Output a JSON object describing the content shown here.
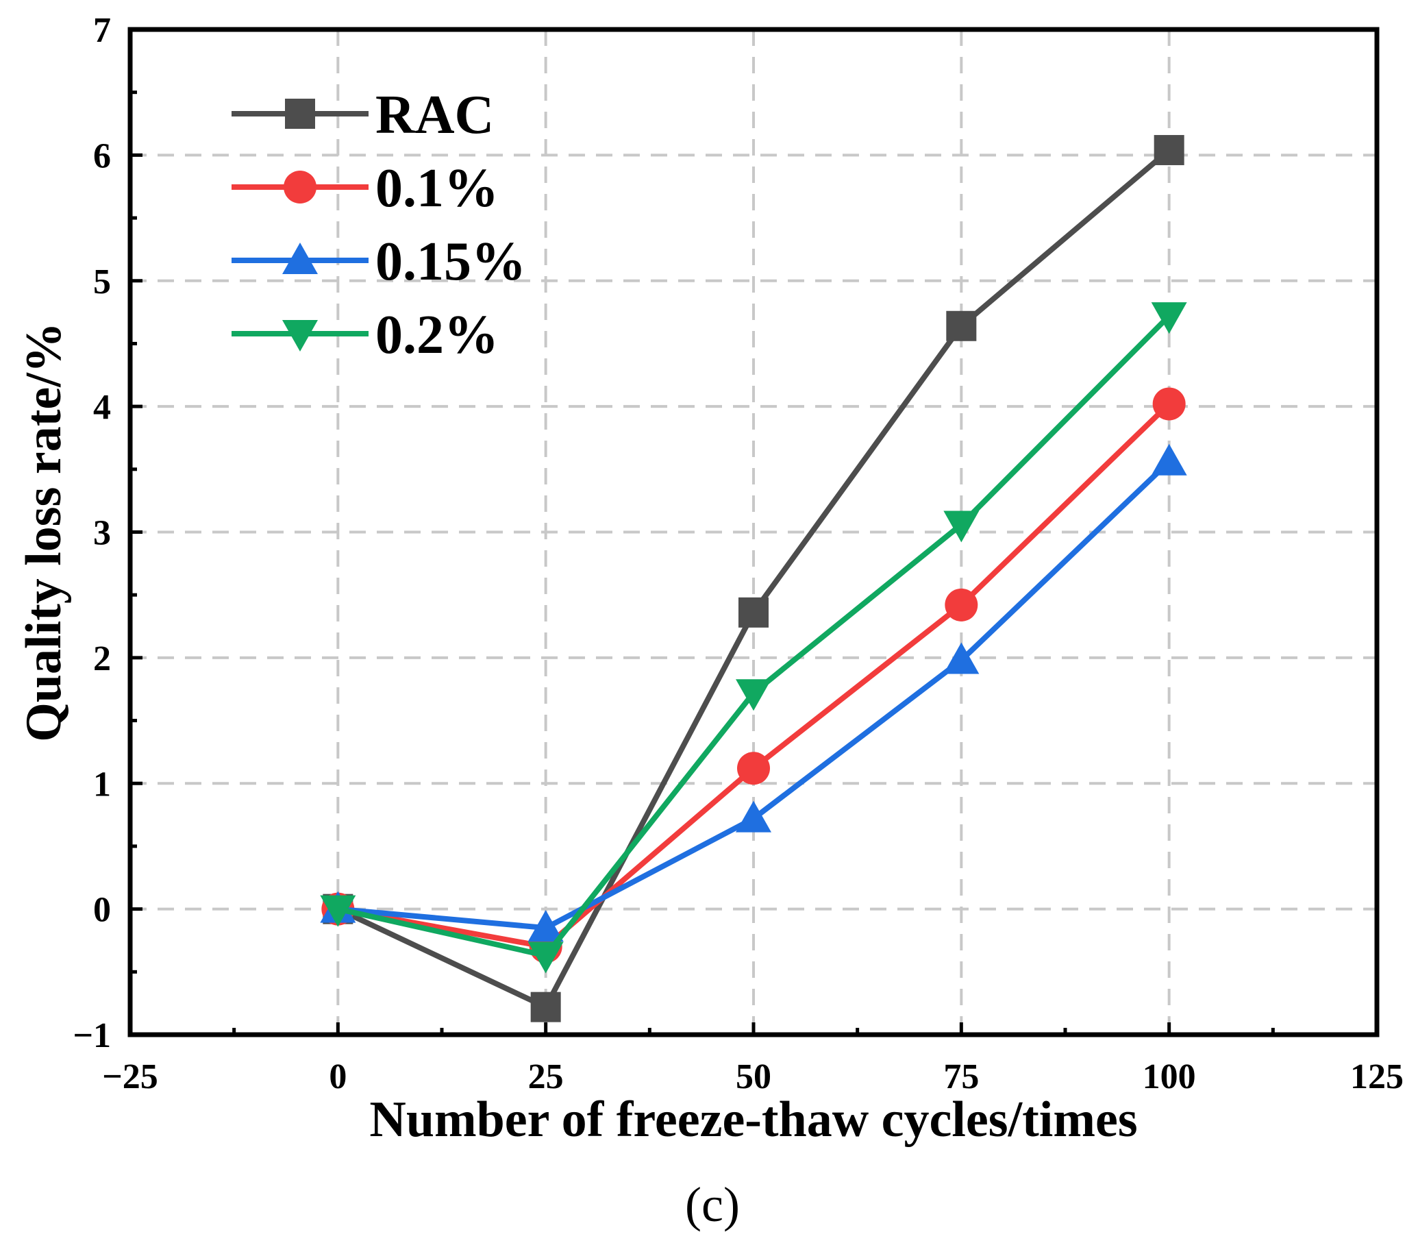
{
  "chart_data": {
    "type": "line",
    "title": "",
    "caption": "(c)",
    "xlabel": "Number of freeze-thaw cycles/times",
    "ylabel": "Quality loss rate/%",
    "xlim": [
      -25,
      125
    ],
    "ylim": [
      -1,
      7
    ],
    "xticks": [
      -25,
      0,
      25,
      50,
      75,
      100,
      125
    ],
    "yticks": [
      -1,
      0,
      1,
      2,
      3,
      4,
      5,
      6,
      7
    ],
    "xtick_labels": [
      "−25",
      "0",
      "25",
      "50",
      "75",
      "100",
      "125"
    ],
    "ytick_labels": [
      "−1",
      "0",
      "1",
      "2",
      "3",
      "4",
      "5",
      "6",
      "7"
    ],
    "grid": true,
    "legend_position": "top-left",
    "x": [
      0,
      25,
      50,
      75,
      100
    ],
    "series": [
      {
        "name": "RAC",
        "color": "#4d4d4d",
        "marker": "square",
        "values": [
          0,
          -0.78,
          2.36,
          4.64,
          6.04
        ]
      },
      {
        "name": "0.1%",
        "color": "#f23c3c",
        "marker": "circle",
        "values": [
          0,
          -0.3,
          1.12,
          2.42,
          4.02
        ]
      },
      {
        "name": "0.15%",
        "color": "#1f6fe0",
        "marker": "triangle-up",
        "values": [
          0,
          -0.15,
          0.72,
          1.98,
          3.56
        ]
      },
      {
        "name": "0.2%",
        "color": "#10a860",
        "marker": "triangle-down",
        "values": [
          0,
          -0.37,
          1.72,
          3.06,
          4.72
        ]
      }
    ]
  }
}
